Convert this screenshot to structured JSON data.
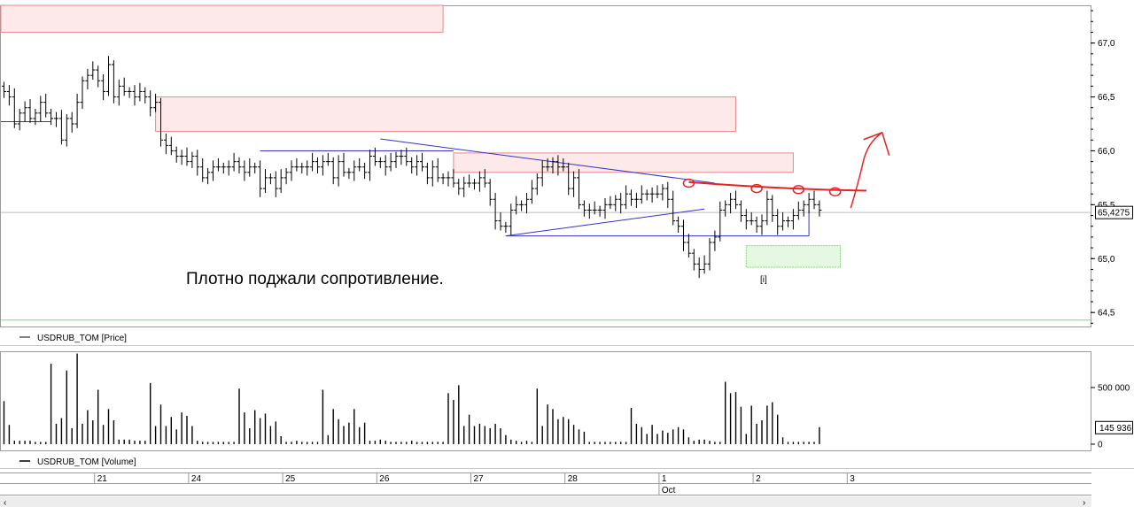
{
  "colors": {
    "bars": "#000000",
    "blue_lines": "#3333cc",
    "red_marker": "#e8231f",
    "resistance_zone_fill": "#fde9e9",
    "resistance_zone_stroke": "#e88a8a",
    "support_zone_fill": "#e6f8e2",
    "support_zone_stroke": "#7fd96f",
    "green_line": "#7fd96f",
    "current_price_line": "#bbbbbb"
  },
  "annotation": {
    "text": "Плотно поджали сопротивление."
  },
  "marker_label": "[i]",
  "chart_data": [
    {
      "type": "ohlc",
      "legend": "USDRUB_TOM [Price]",
      "ylim": [
        64.37,
        67.35
      ],
      "yticks": [
        "67,0",
        "66,5",
        "66,0",
        "65,5",
        "65,0",
        "64,5"
      ],
      "ytick_values": [
        67.0,
        66.5,
        66.0,
        65.5,
        65.0,
        64.5
      ],
      "current_price": {
        "value": 65.4275,
        "label": "65,4275"
      },
      "x_categories": [
        "21",
        "24",
        "25",
        "26",
        "27",
        "28",
        "1",
        "2",
        "3"
      ],
      "month_label": {
        "text": "Oct",
        "at_day": "1"
      },
      "session_ticks": [
        1,
        18,
        36,
        54,
        72,
        90,
        108,
        126,
        144,
        162
      ],
      "closes": [
        66.55,
        66.5,
        66.25,
        66.35,
        66.4,
        66.3,
        66.35,
        66.45,
        66.35,
        66.3,
        66.3,
        66.1,
        66.3,
        66.25,
        66.45,
        66.65,
        66.7,
        66.75,
        66.65,
        66.55,
        66.8,
        66.5,
        66.6,
        66.55,
        66.55,
        66.5,
        66.55,
        66.5,
        66.4,
        66.45,
        66.1,
        66.05,
        66.0,
        65.95,
        65.95,
        65.9,
        65.95,
        65.85,
        65.75,
        65.8,
        65.85,
        65.85,
        65.85,
        65.85,
        65.9,
        65.85,
        65.8,
        65.85,
        65.85,
        65.65,
        65.75,
        65.75,
        65.65,
        65.75,
        65.8,
        65.85,
        65.85,
        65.85,
        65.85,
        65.9,
        65.85,
        65.9,
        65.9,
        65.75,
        65.9,
        65.8,
        65.8,
        65.85,
        65.85,
        65.8,
        65.95,
        65.9,
        65.9,
        65.85,
        65.9,
        65.95,
        65.95,
        65.9,
        65.85,
        65.9,
        65.85,
        65.75,
        65.85,
        65.75,
        65.75,
        65.75,
        65.7,
        65.65,
        65.7,
        65.7,
        65.7,
        65.75,
        65.7,
        65.55,
        65.35,
        65.3,
        65.3,
        65.45,
        65.5,
        65.5,
        65.55,
        65.65,
        65.75,
        65.85,
        65.85,
        65.9,
        65.85,
        65.85,
        65.65,
        65.75,
        65.5,
        65.45,
        65.45,
        65.45,
        65.45,
        65.5,
        65.5,
        65.55,
        65.5,
        65.6,
        65.55,
        65.55,
        65.6,
        65.6,
        65.6,
        65.6,
        65.65,
        65.55,
        65.35,
        65.3,
        65.15,
        65.05,
        64.95,
        64.9,
        64.95,
        65.15,
        65.2,
        65.45,
        65.5,
        65.55,
        65.5,
        65.4,
        65.35,
        65.35,
        65.3,
        65.35,
        65.55,
        65.4,
        65.3,
        65.35,
        65.35,
        65.4,
        65.45,
        65.5,
        65.55,
        65.5,
        65.45
      ],
      "drawings": {
        "resistance_zones": [
          {
            "from_bar": -1,
            "to_bar": 84,
            "price_low": 67.1,
            "price_high": 67.35
          },
          {
            "from_bar": 29,
            "to_bar": 140,
            "price_low": 66.18,
            "price_high": 66.5
          },
          {
            "from_bar": 86,
            "to_bar": 151,
            "price_low": 65.8,
            "price_high": 65.98
          }
        ],
        "support_zones": [
          {
            "from_bar": 142,
            "to_bar": 160,
            "price_low": 64.92,
            "price_high": 65.12
          }
        ],
        "blue_lines": [
          {
            "from": [
              -1,
              66.27
            ],
            "to": [
              9,
              66.27
            ]
          },
          {
            "from": [
              49,
              66.0
            ],
            "to": [
              86,
              66.0
            ]
          },
          {
            "from": [
              72,
              66.11
            ],
            "to": [
              136,
              65.7
            ]
          },
          {
            "from": [
              96,
              65.21
            ],
            "to": [
              134,
              65.46
            ]
          },
          {
            "from": [
              96,
              65.21
            ],
            "to": [
              154,
              65.21
            ]
          },
          {
            "from": [
              154,
              65.21
            ],
            "to": [
              154,
              65.45
            ]
          }
        ],
        "green_line": {
          "price": 64.43
        },
        "red_resistance": {
          "from": [
            131,
            65.71
          ],
          "to": [
            165,
            65.63
          ]
        },
        "red_circles": [
          [
            131,
            65.7
          ],
          [
            144,
            65.65
          ],
          [
            152,
            65.64
          ],
          [
            159,
            65.62
          ]
        ],
        "red_arrow": {
          "from": [
            162,
            65.47
          ],
          "to": [
            168,
            66.17
          ]
        }
      }
    },
    {
      "type": "bar",
      "legend": "USDRUB_TOM [Volume]",
      "ylim": [
        -55000,
        820000
      ],
      "yticks": [
        "500 000",
        "0"
      ],
      "ytick_values": [
        500000,
        0
      ],
      "current_value": {
        "value": 145936,
        "label": "145 936"
      },
      "values": [
        380000,
        170000,
        30000,
        30000,
        30000,
        30000,
        20000,
        20000,
        20000,
        710000,
        180000,
        230000,
        650000,
        140000,
        800000,
        180000,
        300000,
        210000,
        480000,
        170000,
        310000,
        210000,
        40000,
        40000,
        40000,
        30000,
        30000,
        30000,
        540000,
        160000,
        350000,
        160000,
        240000,
        130000,
        280000,
        250000,
        160000,
        30000,
        20000,
        20000,
        20000,
        20000,
        20000,
        20000,
        20000,
        490000,
        280000,
        140000,
        300000,
        230000,
        270000,
        160000,
        200000,
        70000,
        20000,
        20000,
        30000,
        20000,
        20000,
        20000,
        20000,
        480000,
        80000,
        310000,
        220000,
        160000,
        190000,
        310000,
        150000,
        190000,
        30000,
        30000,
        40000,
        30000,
        20000,
        20000,
        20000,
        20000,
        30000,
        20000,
        20000,
        20000,
        20000,
        20000,
        20000,
        450000,
        390000,
        520000,
        160000,
        260000,
        160000,
        180000,
        160000,
        140000,
        180000,
        140000,
        80000,
        40000,
        30000,
        20000,
        30000,
        20000,
        490000,
        160000,
        350000,
        310000,
        220000,
        240000,
        220000,
        170000,
        130000,
        110000,
        20000,
        20000,
        20000,
        20000,
        20000,
        20000,
        20000,
        20000,
        320000,
        180000,
        150000,
        90000,
        170000,
        90000,
        120000,
        100000,
        130000,
        150000,
        130000,
        60000,
        30000,
        40000,
        40000,
        30000,
        20000,
        20000,
        550000,
        450000,
        460000,
        330000,
        90000,
        340000,
        180000,
        210000,
        340000,
        370000,
        260000,
        60000,
        20000,
        20000,
        20000,
        20000,
        20000,
        20000,
        150000
      ]
    }
  ]
}
